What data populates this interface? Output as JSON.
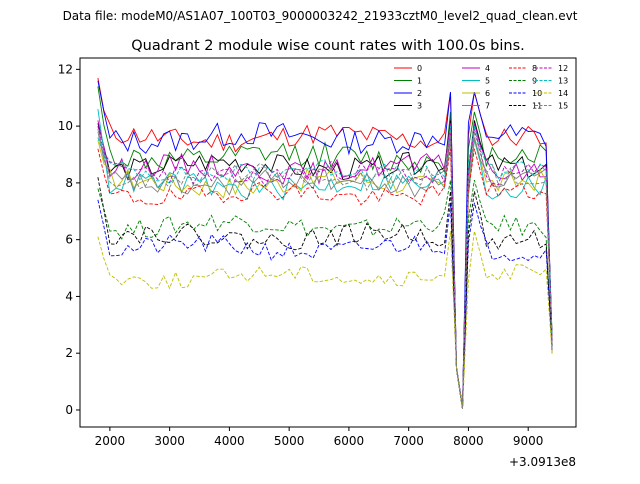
{
  "chart_data": {
    "type": "line",
    "suptitle": "Data file: modeM0/AS1A07_100T03_9000003242_21933cztM0_level2_quad_clean.evt",
    "title": "Quadrant 2 module wise count rates with 100.0s bins.",
    "xlabel": "",
    "ylabel": "",
    "x_offset_label": "+3.0913e8",
    "xlim": [
      1500,
      9800
    ],
    "ylim": [
      -0.6,
      12.4
    ],
    "xticks": [
      2000,
      3000,
      4000,
      5000,
      6000,
      7000,
      8000,
      9000
    ],
    "yticks": [
      0,
      2,
      4,
      6,
      8,
      10,
      12
    ],
    "legend_position": "top-right",
    "x_start": 1800,
    "x_step": 100,
    "x_end": 9400,
    "dip_x": 7900,
    "dip_floor_x": [
      7800,
      7900
    ],
    "peak_x": [
      7700,
      8100
    ],
    "series": [
      {
        "name": "0",
        "color": "#ff0000",
        "dash": "solid",
        "level": 9.6,
        "start": 11.7,
        "noise": 0.4,
        "seed": 11,
        "dip": 0.1
      },
      {
        "name": "1",
        "color": "#008000",
        "dash": "solid",
        "level": 8.9,
        "start": 11.4,
        "noise": 0.45,
        "seed": 12,
        "dip": 0.1
      },
      {
        "name": "2",
        "color": "#0000ff",
        "dash": "solid",
        "level": 9.6,
        "start": 11.6,
        "noise": 0.45,
        "seed": 13,
        "dip": 0.1
      },
      {
        "name": "3",
        "color": "#000000",
        "dash": "solid",
        "level": 8.6,
        "start": 10.1,
        "noise": 0.4,
        "seed": 14,
        "dip": 0.05
      },
      {
        "name": "4",
        "color": "#bf00bf",
        "dash": "solid",
        "level": 8.5,
        "start": 10.2,
        "noise": 0.4,
        "seed": 15,
        "dip": 0.1
      },
      {
        "name": "5",
        "color": "#00bfbf",
        "dash": "solid",
        "level": 7.9,
        "start": 10.6,
        "noise": 0.4,
        "seed": 16,
        "dip": 0.05
      },
      {
        "name": "6",
        "color": "#bfbf00",
        "dash": "solid",
        "level": 8.0,
        "start": 9.5,
        "noise": 0.4,
        "seed": 17,
        "dip": 0.05
      },
      {
        "name": "7",
        "color": "#808080",
        "dash": "solid",
        "level": 8.0,
        "start": 9.8,
        "noise": 0.4,
        "seed": 18,
        "dip": 0.05
      },
      {
        "name": "8",
        "color": "#ff0000",
        "dash": "dashed",
        "level": 7.6,
        "start": 9.2,
        "noise": 0.35,
        "seed": 19,
        "dip": 0.05
      },
      {
        "name": "9",
        "color": "#008000",
        "dash": "dashed",
        "level": 6.5,
        "start": 7.8,
        "noise": 0.35,
        "seed": 20,
        "dip": 0.05
      },
      {
        "name": "10",
        "color": "#0000ff",
        "dash": "dashed",
        "level": 5.7,
        "start": 7.4,
        "noise": 0.35,
        "seed": 21,
        "dip": 0.05
      },
      {
        "name": "11",
        "color": "#000000",
        "dash": "dashed",
        "level": 6.1,
        "start": 8.2,
        "noise": 0.35,
        "seed": 22,
        "dip": 0.05
      },
      {
        "name": "12",
        "color": "#bf00bf",
        "dash": "dashed",
        "level": 8.3,
        "start": 10.0,
        "noise": 0.35,
        "seed": 23,
        "dip": 0.05
      },
      {
        "name": "13",
        "color": "#00bfbf",
        "dash": "dashed",
        "level": 8.4,
        "start": 9.6,
        "noise": 0.35,
        "seed": 24,
        "dip": 0.05
      },
      {
        "name": "14",
        "color": "#bfbf00",
        "dash": "dashed",
        "level": 4.7,
        "start": 6.1,
        "noise": 0.3,
        "seed": 25,
        "dip": 0.05
      },
      {
        "name": "15",
        "color": "#808080",
        "dash": "dashed",
        "level": 8.2,
        "start": 9.9,
        "noise": 0.35,
        "seed": 26,
        "dip": 0.05
      }
    ]
  }
}
